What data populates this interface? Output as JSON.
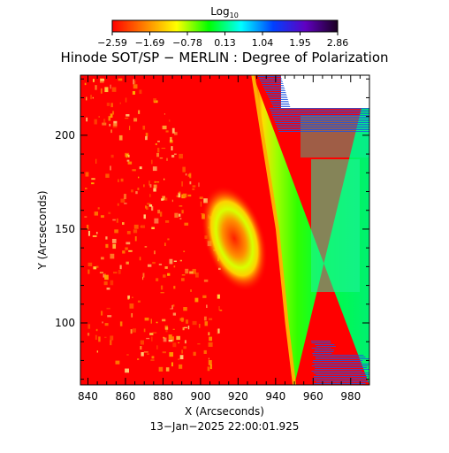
{
  "colorbar": {
    "title_main": "Log",
    "title_sub": "10",
    "ticks": [
      "−2.59",
      "−1.69",
      "−0.78",
      "0.13",
      "1.04",
      "1.95",
      "2.86"
    ],
    "colors": [
      "#ff0000",
      "#ff8000",
      "#ffff00",
      "#00ff00",
      "#00ffff",
      "#0040ff",
      "#6000c0",
      "#1a0020"
    ]
  },
  "chart_data": {
    "type": "heatmap",
    "title": "Hinode SOT/SP − MERLIN : Degree of Polarization",
    "xlabel": "X (Arcseconds)",
    "ylabel": "Y (Arcseconds)",
    "xlim": [
      836,
      990
    ],
    "ylim": [
      67,
      232
    ],
    "xticks": [
      840,
      860,
      880,
      900,
      920,
      940,
      960,
      980
    ],
    "yticks": [
      100,
      150,
      200
    ],
    "value_range": [
      -2.59,
      2.86
    ],
    "features": {
      "limb": [
        [
          950,
          67
        ],
        [
          946,
          100
        ],
        [
          941,
          150
        ],
        [
          933,
          200
        ],
        [
          928,
          232
        ]
      ],
      "spot_center": [
        918,
        145
      ]
    }
  },
  "footer": {
    "timestamp": "13−Jan−2025 22:00:01.925"
  },
  "colors": {
    "disk_red": "#ff0000",
    "limb_green": "#33ff00",
    "offlimb_green": "#00f070",
    "blue_stripes": "#1f55e0",
    "background": "#ffffff"
  }
}
